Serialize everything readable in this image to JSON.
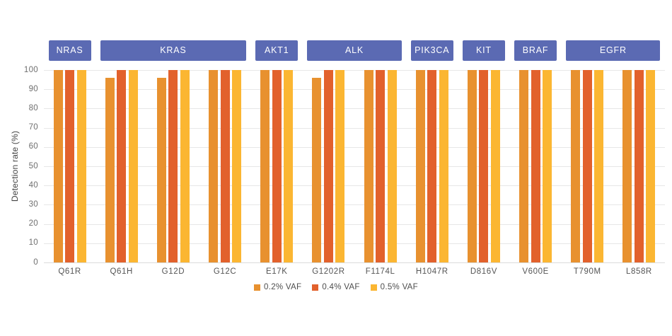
{
  "chart_data": {
    "type": "bar",
    "title": "",
    "xlabel": "",
    "ylabel": "Detection rate (%)",
    "ylim": [
      0,
      100
    ],
    "yticks": [
      0,
      10,
      20,
      30,
      40,
      50,
      60,
      70,
      80,
      90,
      100
    ],
    "grid": true,
    "legend_position": "bottom-center",
    "categories": [
      "Q61R",
      "Q61H",
      "G12D",
      "G12C",
      "E17K",
      "G1202R",
      "F1174L",
      "H1047R",
      "D816V",
      "V600E",
      "T790M",
      "L858R"
    ],
    "gene_groups": [
      {
        "label": "NRAS",
        "from": 0,
        "to": 0
      },
      {
        "label": "KRAS",
        "from": 1,
        "to": 3
      },
      {
        "label": "AKT1",
        "from": 4,
        "to": 4
      },
      {
        "label": "ALK",
        "from": 5,
        "to": 6
      },
      {
        "label": "PIK3CA",
        "from": 7,
        "to": 7
      },
      {
        "label": "KIT",
        "from": 8,
        "to": 8
      },
      {
        "label": "BRAF",
        "from": 9,
        "to": 9
      },
      {
        "label": "EGFR",
        "from": 10,
        "to": 11
      }
    ],
    "series": [
      {
        "name": "0.2% VAF",
        "color": "#E8912F",
        "values": [
          100,
          96,
          96,
          100,
          100,
          96,
          100,
          100,
          100,
          100,
          100,
          100
        ]
      },
      {
        "name": "0.4% VAF",
        "color": "#E2612C",
        "values": [
          100,
          100,
          100,
          100,
          100,
          100,
          100,
          100,
          100,
          100,
          100,
          100
        ]
      },
      {
        "name": "0.5% VAF",
        "color": "#FBB632",
        "values": [
          100,
          100,
          100,
          100,
          100,
          100,
          100,
          100,
          100,
          100,
          100,
          100
        ]
      }
    ],
    "colors": {
      "gene_box": "#5B6AB3",
      "grid": "#E7E7E7",
      "axis_text": "#6F6F6F",
      "label_text": "#555555"
    }
  }
}
